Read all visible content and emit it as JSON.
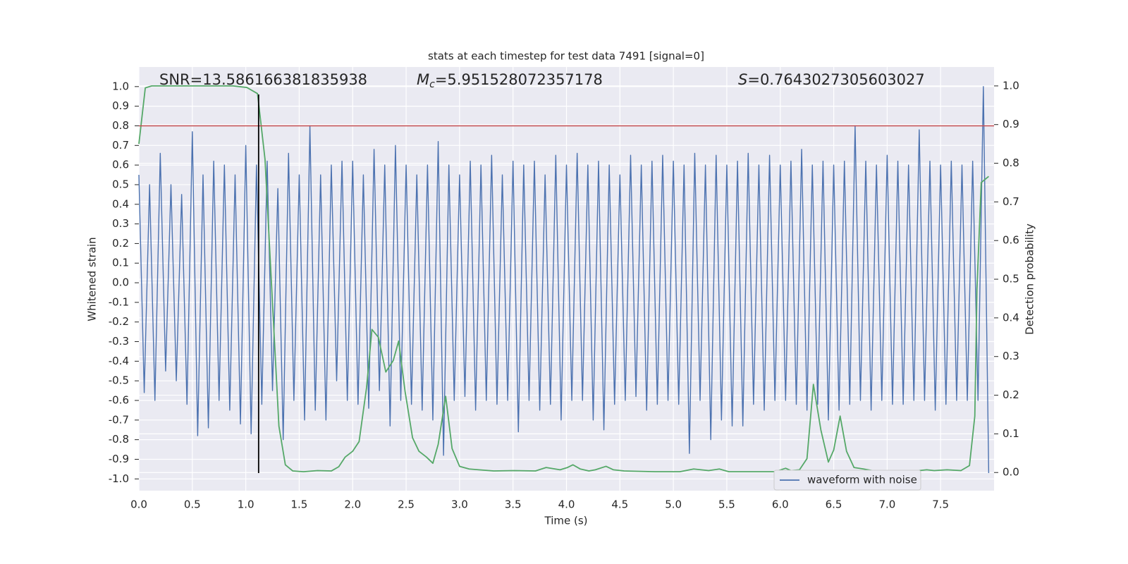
{
  "chart_data": {
    "type": "line",
    "title": "stats at each timestep for test data 7491 [signal=0]",
    "x_label": "Time (s)",
    "y_label": "Whitened strain",
    "y2_label": "Detection probability",
    "annotations": [
      {
        "text": "SNR=13.586166381835938"
      },
      {
        "symbol": "M",
        "subscript": "c",
        "text": "=5.951528072357178"
      },
      {
        "symbol": "S",
        "text": "=0.7643027305603027"
      }
    ],
    "xlim": [
      0,
      8.0
    ],
    "ylim": [
      -1.06,
      1.1
    ],
    "y2lim": [
      -0.047,
      1.049
    ],
    "xticks": [
      {
        "value": 0,
        "label": "0.0"
      },
      0.5,
      {
        "value": 1,
        "label": "1.0"
      },
      1.5,
      {
        "value": 2,
        "label": "2.0"
      },
      2.5,
      {
        "value": 3,
        "label": "3.0"
      },
      3.5,
      {
        "value": 4,
        "label": "4.0"
      },
      4.5,
      {
        "value": 5,
        "label": "5.0"
      },
      5.5,
      {
        "value": 6,
        "label": "6.0"
      },
      6.5,
      {
        "value": 7,
        "label": "7.0"
      },
      7.5
    ],
    "yticks": [
      {
        "value": -1,
        "label": "-1.0"
      },
      -0.9,
      -0.8,
      -0.7,
      -0.6,
      -0.5,
      -0.4,
      -0.3,
      -0.2,
      -0.1,
      {
        "value": 0,
        "label": "0.0"
      },
      0.1,
      0.2,
      0.3,
      0.4,
      0.5,
      0.6,
      0.7,
      0.8,
      0.9,
      {
        "value": 1,
        "label": "1.0"
      }
    ],
    "y2ticks": [
      {
        "value": 0,
        "label": "0.0"
      },
      0.1,
      0.2,
      0.3,
      0.4,
      0.5,
      0.6,
      0.7,
      0.8,
      0.9,
      {
        "value": 1,
        "label": "1.0"
      }
    ],
    "grid": true,
    "legend": "lower right",
    "hline": {
      "y": 0.8,
      "color": "#c44e52"
    },
    "vline": {
      "x": 1.12,
      "ymin": -0.97,
      "ymax": 0.96,
      "color": "#000000"
    },
    "series": [
      {
        "name": "waveform with noise",
        "color": "#4c72b0",
        "x": [
          0,
          0.05,
          0.1,
          0.15,
          0.2,
          0.25,
          0.3,
          0.35,
          0.4,
          0.45,
          0.5,
          0.55,
          0.6,
          0.65,
          0.7,
          0.75,
          0.8,
          0.85,
          0.9,
          0.95,
          1,
          1.05,
          1.1,
          1.15,
          1.2,
          1.25,
          1.3,
          1.35,
          1.4,
          1.45,
          1.5,
          1.55,
          1.6,
          1.65,
          1.7,
          1.75,
          1.8,
          1.85,
          1.9,
          1.95,
          2,
          2.05,
          2.1,
          2.15,
          2.2,
          2.25,
          2.3,
          2.35,
          2.4,
          2.45,
          2.5,
          2.55,
          2.6,
          2.65,
          2.7,
          2.75,
          2.8,
          2.85,
          2.9,
          2.95,
          3,
          3.05,
          3.1,
          3.15,
          3.2,
          3.25,
          3.3,
          3.35,
          3.4,
          3.45,
          3.5,
          3.55,
          3.6,
          3.65,
          3.7,
          3.75,
          3.8,
          3.85,
          3.9,
          3.95,
          4,
          4.05,
          4.1,
          4.15,
          4.2,
          4.25,
          4.3,
          4.35,
          4.4,
          4.45,
          4.5,
          4.55,
          4.6,
          4.65,
          4.7,
          4.75,
          4.8,
          4.85,
          4.9,
          4.95,
          5,
          5.05,
          5.1,
          5.15,
          5.2,
          5.25,
          5.3,
          5.35,
          5.4,
          5.45,
          5.5,
          5.55,
          5.6,
          5.65,
          5.7,
          5.75,
          5.8,
          5.85,
          5.9,
          5.95,
          6,
          6.05,
          6.1,
          6.15,
          6.2,
          6.25,
          6.3,
          6.35,
          6.4,
          6.45,
          6.5,
          6.55,
          6.6,
          6.65,
          6.7,
          6.75,
          6.8,
          6.85,
          6.9,
          6.95,
          7,
          7.05,
          7.1,
          7.15,
          7.2,
          7.25,
          7.3,
          7.35,
          7.4,
          7.45,
          7.5,
          7.55,
          7.6,
          7.65,
          7.7,
          7.75,
          7.8,
          7.85,
          7.9,
          7.95
        ],
        "values": [
          0.55,
          -0.56,
          0.5,
          -0.6,
          0.66,
          -0.45,
          0.5,
          -0.5,
          0.45,
          -0.62,
          0.77,
          -0.78,
          0.55,
          -0.74,
          0.62,
          -0.6,
          0.6,
          -0.65,
          0.55,
          -0.72,
          0.7,
          -0.77,
          0.6,
          -0.62,
          0.62,
          -0.55,
          0.48,
          -0.8,
          0.66,
          -0.6,
          0.55,
          -0.7,
          0.8,
          -0.65,
          0.55,
          -0.7,
          0.6,
          -0.5,
          0.62,
          -0.6,
          0.62,
          -0.62,
          0.55,
          -0.64,
          0.68,
          -0.55,
          0.6,
          -0.73,
          0.7,
          -0.6,
          0.6,
          -0.62,
          0.55,
          -0.65,
          0.6,
          -0.7,
          0.72,
          -0.88,
          0.6,
          -0.6,
          0.55,
          -0.58,
          0.62,
          -0.65,
          0.6,
          -0.6,
          0.65,
          -0.62,
          0.55,
          -0.6,
          0.62,
          -0.76,
          0.6,
          -0.6,
          0.62,
          -0.65,
          0.55,
          -0.62,
          0.65,
          -0.7,
          0.6,
          -0.6,
          0.66,
          -0.6,
          0.6,
          -0.7,
          0.62,
          -0.75,
          0.6,
          -0.62,
          0.55,
          -0.6,
          0.65,
          -0.58,
          0.6,
          -0.65,
          0.62,
          -0.62,
          0.65,
          -0.6,
          0.62,
          -0.62,
          0.6,
          -0.87,
          0.66,
          -0.6,
          0.6,
          -0.8,
          0.65,
          -0.7,
          0.6,
          -0.73,
          0.62,
          -0.73,
          0.66,
          -0.62,
          0.6,
          -0.65,
          0.65,
          -0.6,
          0.6,
          -0.6,
          0.62,
          -0.62,
          0.68,
          -0.65,
          0.6,
          -0.62,
          0.62,
          -0.7,
          0.6,
          -0.65,
          0.62,
          -0.62,
          0.8,
          -0.6,
          0.62,
          -0.65,
          0.6,
          -0.6,
          0.65,
          -0.62,
          0.62,
          -0.62,
          0.6,
          -0.6,
          0.78,
          -0.6,
          0.62,
          -0.65,
          0.6,
          -0.62,
          0.62,
          -0.6,
          0.6,
          -0.6,
          0.62,
          -0.6,
          1.0,
          -0.97
        ]
      },
      {
        "color": "#55a868",
        "axis": "y2",
        "x": [
          0,
          0.06,
          0.12,
          0.41,
          0.88,
          1.01,
          1.11,
          1.18,
          1.24,
          1.31,
          1.37,
          1.44,
          1.54,
          1.67,
          1.8,
          1.87,
          1.93,
          2,
          2.06,
          2.13,
          2.18,
          2.24,
          2.31,
          2.38,
          2.43,
          2.49,
          2.56,
          2.62,
          2.69,
          2.75,
          2.8,
          2.87,
          2.93,
          3,
          3.09,
          3.18,
          3.32,
          3.51,
          3.71,
          3.81,
          3.94,
          4.01,
          4.06,
          4.13,
          4.21,
          4.27,
          4.37,
          4.44,
          4.54,
          4.83,
          5.06,
          5.19,
          5.33,
          5.43,
          5.52,
          5.95,
          6.05,
          6.1,
          6.18,
          6.25,
          6.31,
          6.38,
          6.45,
          6.5,
          6.56,
          6.62,
          6.69,
          6.78,
          6.88,
          7.01,
          7.27,
          7.37,
          7.44,
          7.56,
          7.69,
          7.77,
          7.82,
          7.84,
          7.88,
          7.95
        ],
        "values": [
          0.85,
          0.995,
          1.0,
          1.0,
          1.0,
          0.996,
          0.98,
          0.81,
          0.49,
          0.12,
          0.02,
          0.004,
          0.002,
          0.005,
          0.004,
          0.015,
          0.04,
          0.055,
          0.08,
          0.22,
          0.37,
          0.35,
          0.26,
          0.29,
          0.34,
          0.21,
          0.09,
          0.055,
          0.04,
          0.024,
          0.073,
          0.197,
          0.062,
          0.016,
          0.009,
          0.007,
          0.004,
          0.005,
          0.004,
          0.013,
          0.007,
          0.013,
          0.02,
          0.009,
          0.004,
          0.007,
          0.016,
          0.007,
          0.004,
          0.002,
          0.002,
          0.009,
          0.005,
          0.009,
          0.002,
          0.002,
          0.011,
          0.005,
          0.007,
          0.036,
          0.228,
          0.11,
          0.027,
          0.058,
          0.146,
          0.055,
          0.013,
          0.009,
          0.004,
          0.002,
          0.004,
          0.007,
          0.005,
          0.007,
          0.005,
          0.018,
          0.146,
          0.474,
          0.75,
          0.766
        ]
      }
    ]
  }
}
